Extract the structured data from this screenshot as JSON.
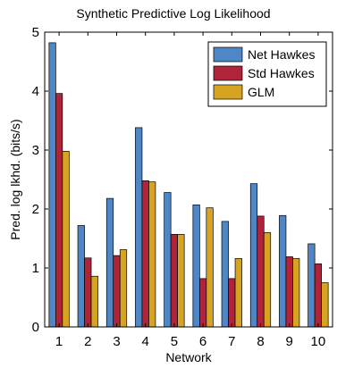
{
  "chart_data": {
    "type": "bar",
    "title": "Synthetic Predictive Log Likelihood",
    "xlabel": "Network",
    "ylabel": "Pred. log lkhd. (bits/s)",
    "categories": [
      "1",
      "2",
      "3",
      "4",
      "5",
      "6",
      "7",
      "8",
      "9",
      "10"
    ],
    "ylim": [
      0,
      5
    ],
    "yticks": [
      "0",
      "1",
      "2",
      "3",
      "4",
      "5"
    ],
    "grid": false,
    "legend_position": "top-right",
    "series": [
      {
        "name": "Net Hawkes",
        "color": "#4f86c6",
        "values": [
          4.82,
          1.72,
          2.18,
          3.38,
          2.28,
          2.07,
          1.79,
          2.43,
          1.89,
          1.41
        ]
      },
      {
        "name": "Std Hawkes",
        "color": "#b0243a",
        "values": [
          3.96,
          1.17,
          1.21,
          2.48,
          1.57,
          0.82,
          0.82,
          1.88,
          1.19,
          1.07
        ]
      },
      {
        "name": "GLM",
        "color": "#d6a420",
        "values": [
          2.98,
          0.86,
          1.31,
          2.46,
          1.57,
          2.02,
          1.16,
          1.6,
          1.16,
          0.75
        ]
      }
    ]
  }
}
